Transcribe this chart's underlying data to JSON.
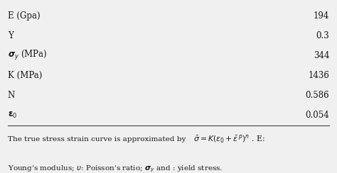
{
  "rows": [
    [
      "E (Gpa)",
      "194"
    ],
    [
      "Y",
      "0.3"
    ],
    [
      "sigma_y",
      "344"
    ],
    [
      "K (MPa)",
      "1436"
    ],
    [
      "N",
      "0.586"
    ],
    [
      "epsilon_0",
      "0.054"
    ]
  ],
  "footer_line1": "The true stress strain curve is approximated by",
  "footer_eq": "$\\bar{\\sigma} = K\\left(\\varepsilon_0 + \\bar{\\varepsilon}^{\\,p}\\right)^n$ . E:",
  "footer_line2": "Young's modulus; $\\upsilon$: Poisson's ratio; $\\boldsymbol{\\sigma}_y$ and : yield stress.",
  "bg_color": "#f0f0f0",
  "text_color": "#1a1a1a",
  "line_color": "#444444"
}
